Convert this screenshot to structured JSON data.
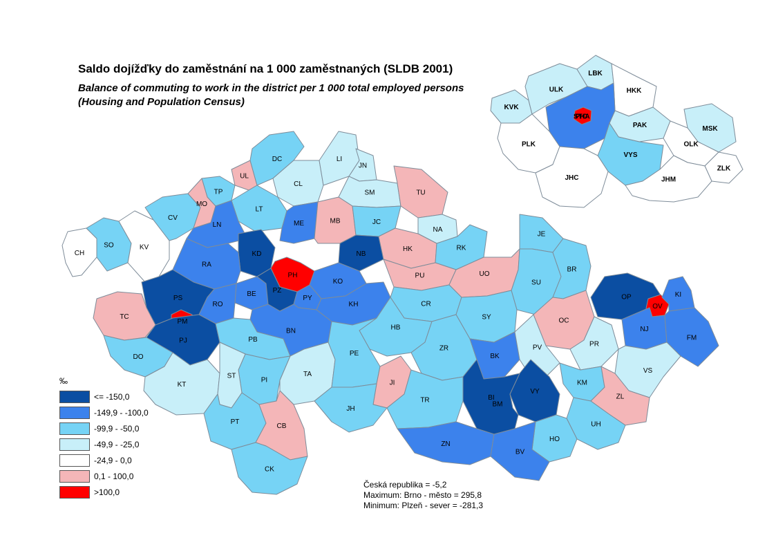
{
  "title": "Saldo dojížďky do zaměstnání na 1 000 zaměstnaných (SLDB 2001)",
  "subtitle": "Balance of commuting to work in the district per 1 000 total employed persons (Housing and Population Census)",
  "colors": {
    "c1": "#0b4ea2",
    "c2": "#3c82ec",
    "c3": "#76d3f5",
    "c4": "#c8eff9",
    "c5": "#ffffff",
    "c6": "#f4b6b8",
    "c7": "#ff0000",
    "border": "#7e8c99"
  },
  "legend": {
    "unit": "‰",
    "items": [
      {
        "label": "<= -150,0",
        "color": "#0b4ea2"
      },
      {
        "label": "-149,9 - -100,0",
        "color": "#3c82ec"
      },
      {
        "label": "-99,9 - -50,0",
        "color": "#76d3f5"
      },
      {
        "label": "-49,9 - -25,0",
        "color": "#c8eff9"
      },
      {
        "label": "-24,9 - 0,0",
        "color": "#ffffff"
      },
      {
        "label": "0,1 - 100,0",
        "color": "#f4b6b8"
      },
      {
        "label": ">100,0",
        "color": "#ff0000"
      }
    ]
  },
  "stats": {
    "cr": "Česká republika = -5,2",
    "max": "Maximum: Brno - město = 295,8",
    "min": "Minimum: Plzeň - sever = -281,3"
  },
  "districts": [
    {
      "code": "CH",
      "cls": 5
    },
    {
      "code": "SO",
      "cls": 3
    },
    {
      "code": "KV",
      "cls": 5
    },
    {
      "code": "CV",
      "cls": 3
    },
    {
      "code": "TP",
      "cls": 3
    },
    {
      "code": "MO",
      "cls": 6
    },
    {
      "code": "UL",
      "cls": 6
    },
    {
      "code": "DC",
      "cls": 3
    },
    {
      "code": "CL",
      "cls": 4
    },
    {
      "code": "LI",
      "cls": 4
    },
    {
      "code": "JN",
      "cls": 4
    },
    {
      "code": "SM",
      "cls": 4
    },
    {
      "code": "TU",
      "cls": 6
    },
    {
      "code": "LT",
      "cls": 3
    },
    {
      "code": "LN",
      "cls": 2
    },
    {
      "code": "ME",
      "cls": 2
    },
    {
      "code": "MB",
      "cls": 6
    },
    {
      "code": "JC",
      "cls": 3
    },
    {
      "code": "NA",
      "cls": 4
    },
    {
      "code": "KD",
      "cls": 1
    },
    {
      "code": "NB",
      "cls": 1
    },
    {
      "code": "HK",
      "cls": 6
    },
    {
      "code": "RK",
      "cls": 3
    },
    {
      "code": "RA",
      "cls": 2
    },
    {
      "code": "PH",
      "cls": 7
    },
    {
      "code": "KO",
      "cls": 2
    },
    {
      "code": "PU",
      "cls": 6
    },
    {
      "code": "UO",
      "cls": 6
    },
    {
      "code": "JE",
      "cls": 3
    },
    {
      "code": "PS",
      "cls": 1
    },
    {
      "code": "BE",
      "cls": 2
    },
    {
      "code": "PZ",
      "cls": 1
    },
    {
      "code": "PY",
      "cls": 2
    },
    {
      "code": "KH",
      "cls": 2
    },
    {
      "code": "CR",
      "cls": 3
    },
    {
      "code": "SU",
      "cls": 3
    },
    {
      "code": "BR",
      "cls": 3
    },
    {
      "code": "TC",
      "cls": 6
    },
    {
      "code": "RO",
      "cls": 2
    },
    {
      "code": "PM",
      "cls": 7
    },
    {
      "code": "BN",
      "cls": 2
    },
    {
      "code": "SY",
      "cls": 3
    },
    {
      "code": "OP",
      "cls": 1
    },
    {
      "code": "OV",
      "cls": 7
    },
    {
      "code": "KI",
      "cls": 2
    },
    {
      "code": "PJ",
      "cls": 1
    },
    {
      "code": "PB",
      "cls": 3
    },
    {
      "code": "HB",
      "cls": 3
    },
    {
      "code": "OC",
      "cls": 6
    },
    {
      "code": "NJ",
      "cls": 2
    },
    {
      "code": "FM",
      "cls": 2
    },
    {
      "code": "DO",
      "cls": 3
    },
    {
      "code": "PI",
      "cls": 3
    },
    {
      "code": "TA",
      "cls": 4
    },
    {
      "code": "PE",
      "cls": 3
    },
    {
      "code": "ZR",
      "cls": 3
    },
    {
      "code": "BK",
      "cls": 2
    },
    {
      "code": "PV",
      "cls": 4
    },
    {
      "code": "PR",
      "cls": 4
    },
    {
      "code": "VS",
      "cls": 4
    },
    {
      "code": "KT",
      "cls": 4
    },
    {
      "code": "ST",
      "cls": 4
    },
    {
      "code": "JI",
      "cls": 6
    },
    {
      "code": "KM",
      "cls": 3
    },
    {
      "code": "ZL",
      "cls": 6
    },
    {
      "code": "BM",
      "cls": 7
    },
    {
      "code": "VY",
      "cls": 1
    },
    {
      "code": "UH",
      "cls": 3
    },
    {
      "code": "JH",
      "cls": 3
    },
    {
      "code": "TR",
      "cls": 3
    },
    {
      "code": "BI",
      "cls": 1
    },
    {
      "code": "PT",
      "cls": 3
    },
    {
      "code": "CB",
      "cls": 6
    },
    {
      "code": "HO",
      "cls": 3
    },
    {
      "code": "ZN",
      "cls": 2
    },
    {
      "code": "BV",
      "cls": 2
    },
    {
      "code": "CK",
      "cls": 3
    }
  ],
  "regions": [
    {
      "code": "KVK",
      "cls": 4
    },
    {
      "code": "ULK",
      "cls": 4
    },
    {
      "code": "LBK",
      "cls": 4
    },
    {
      "code": "HKK",
      "cls": 5
    },
    {
      "code": "PHA",
      "cls": 7
    },
    {
      "code": "STC",
      "cls": 2
    },
    {
      "code": "PAK",
      "cls": 4
    },
    {
      "code": "MSK",
      "cls": 4
    },
    {
      "code": "PLK",
      "cls": 5
    },
    {
      "code": "VYS",
      "cls": 3
    },
    {
      "code": "OLK",
      "cls": 5
    },
    {
      "code": "ZLK",
      "cls": 5
    },
    {
      "code": "JHC",
      "cls": 5
    },
    {
      "code": "JHM",
      "cls": 5
    }
  ]
}
